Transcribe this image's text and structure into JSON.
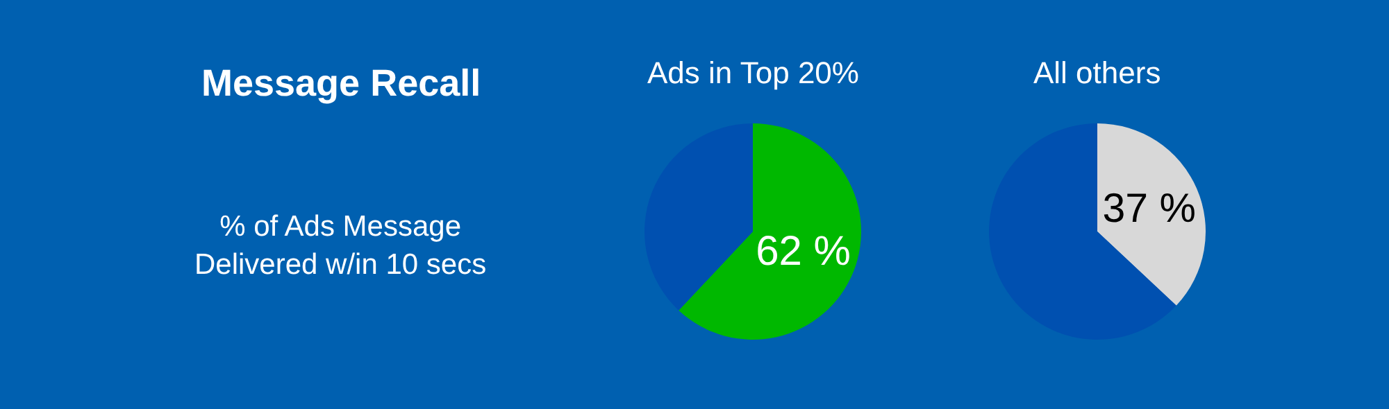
{
  "chart_data": [
    {
      "type": "other",
      "title": "Message Recall",
      "subtitle": "% of Ads Message Delivered w/in 10 secs"
    },
    {
      "type": "pie",
      "title": "Ads in Top 20%",
      "categories": [
        null,
        null
      ],
      "values": [
        62,
        38
      ],
      "colors": [
        "#00b800",
        "#0050b0"
      ],
      "value_labels": [
        "62 %",
        null
      ]
    },
    {
      "type": "pie",
      "title": "All others",
      "categories": [
        null,
        null
      ],
      "values": [
        37,
        63
      ],
      "colors": [
        "#d8d8d8",
        "#0050b0"
      ],
      "value_labels": [
        "37 %",
        null
      ]
    }
  ]
}
